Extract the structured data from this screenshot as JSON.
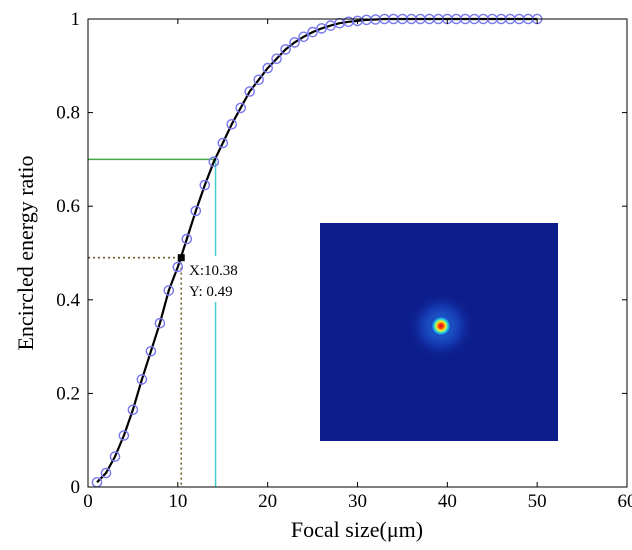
{
  "chart_data": {
    "type": "line",
    "title": "",
    "xlabel": "Focal size(μm)",
    "ylabel": "Encircled energy ratio",
    "xlim": [
      0,
      60
    ],
    "ylim": [
      0,
      1
    ],
    "xticks": [
      "0",
      "10",
      "20",
      "30",
      "40",
      "50",
      "60"
    ],
    "yticks": [
      "0",
      "0.2",
      "0.4",
      "0.6",
      "0.8",
      "1"
    ],
    "grid": false,
    "series": [
      {
        "style": "markers + line",
        "line_color": "#000000",
        "marker_color": "#7777ee",
        "x": [
          1,
          2,
          3,
          4,
          5,
          6,
          7,
          8,
          9,
          10,
          11,
          12,
          13,
          14,
          15,
          16,
          17,
          18,
          19,
          20,
          21,
          22,
          23,
          24,
          25,
          26,
          27,
          28,
          29,
          30,
          31,
          32,
          33,
          34,
          35,
          36,
          37,
          38,
          39,
          40,
          41,
          42,
          43,
          44,
          45,
          46,
          47,
          48,
          49,
          50
        ],
        "y": [
          0.01,
          0.03,
          0.065,
          0.11,
          0.165,
          0.23,
          0.29,
          0.35,
          0.42,
          0.47,
          0.53,
          0.59,
          0.645,
          0.695,
          0.735,
          0.775,
          0.81,
          0.845,
          0.87,
          0.895,
          0.915,
          0.935,
          0.95,
          0.962,
          0.972,
          0.98,
          0.986,
          0.991,
          0.994,
          0.996,
          0.998,
          0.999,
          1,
          1,
          1,
          1,
          1,
          1,
          1,
          1,
          1,
          1,
          1,
          1,
          1,
          1,
          1,
          1,
          1,
          1
        ]
      }
    ],
    "reference_lines": [
      {
        "name": "half-energy",
        "x": 10.38,
        "y": 0.49,
        "color": "#6b5a28",
        "dash": "dotted"
      },
      {
        "name": "seventy-percent",
        "x": 14.2,
        "y": 0.7,
        "h_color": "#44aa44",
        "v_color": "#44cccc"
      }
    ],
    "annotation": {
      "x": 10.38,
      "y": 0.49,
      "line1": "X:10.38",
      "line2": "Y: 0.49"
    },
    "inset": {
      "description": "focal spot intensity image",
      "background": "#0d1d8c",
      "hot_color": "#d81e1e"
    }
  }
}
